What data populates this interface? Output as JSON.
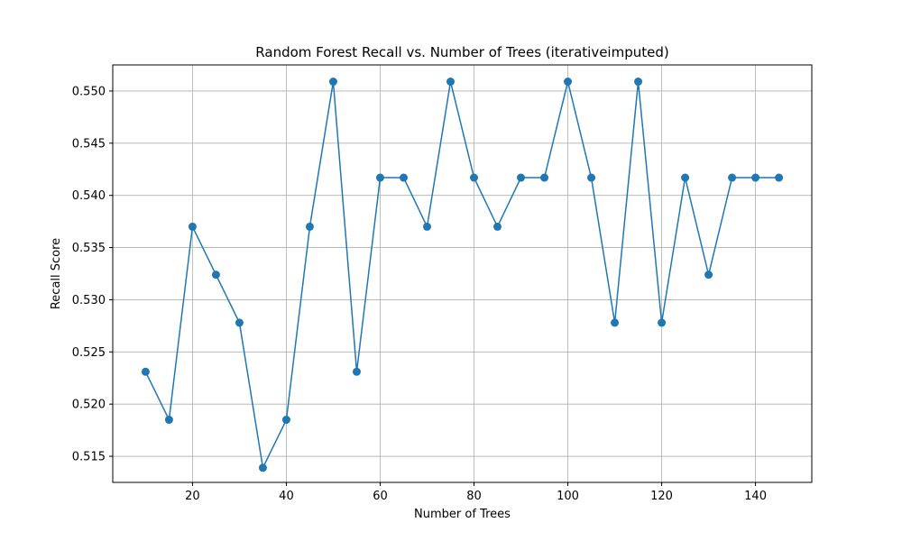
{
  "chart_data": {
    "type": "line",
    "title": "Random Forest Recall vs. Number of Trees (iterativeimputed)",
    "xlabel": "Number of Trees",
    "ylabel": "Recall Score",
    "xlim": [
      3,
      152
    ],
    "ylim": [
      0.5125,
      0.5525
    ],
    "xticks": [
      20,
      40,
      60,
      80,
      100,
      120,
      140
    ],
    "yticks": [
      0.515,
      0.52,
      0.525,
      0.53,
      0.535,
      0.54,
      0.545,
      0.55
    ],
    "grid": true,
    "marker": "circle",
    "color": "#1f77b4",
    "series": [
      {
        "x": [
          10,
          15,
          20,
          25,
          30,
          35,
          40,
          45,
          50,
          55,
          60,
          65,
          70,
          75,
          80,
          85,
          90,
          95,
          100,
          105,
          110,
          115,
          120,
          125,
          130,
          135,
          140,
          145
        ],
        "values": [
          0.5231,
          0.5185,
          0.537,
          0.5324,
          0.5278,
          0.5139,
          0.5185,
          0.537,
          0.5509,
          0.5231,
          0.5417,
          0.5417,
          0.537,
          0.5509,
          0.5417,
          0.537,
          0.5417,
          0.5417,
          0.5509,
          0.5417,
          0.5278,
          0.5509,
          0.5278,
          0.5417,
          0.5324,
          0.5417,
          0.5417,
          0.5417
        ]
      }
    ]
  }
}
